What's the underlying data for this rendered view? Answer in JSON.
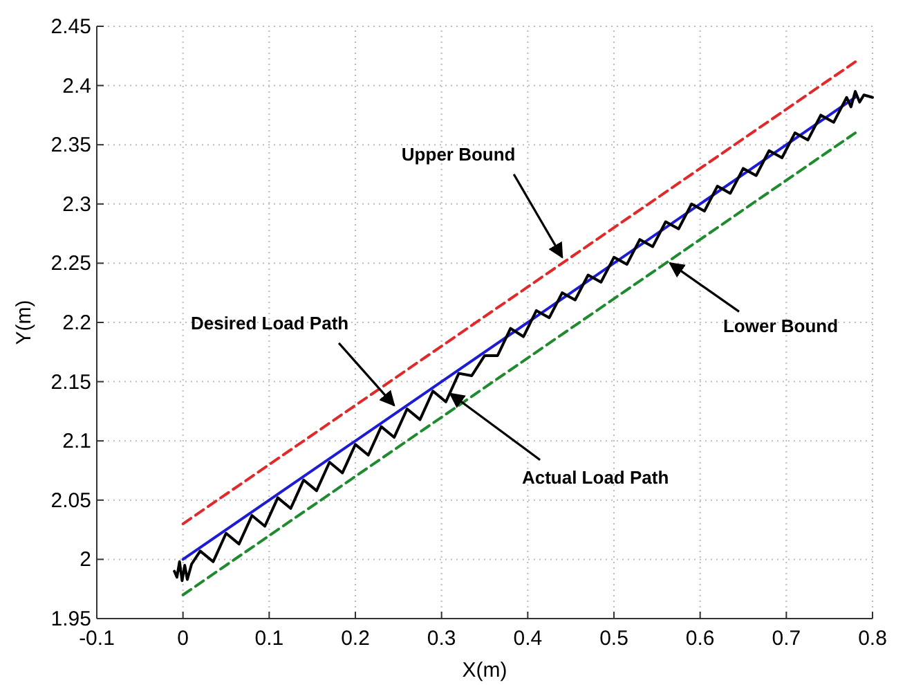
{
  "chart_data": {
    "type": "line",
    "xlabel": "X(m)",
    "ylabel": "Y(m)",
    "xlim": [
      -0.1,
      0.8
    ],
    "ylim": [
      1.95,
      2.45
    ],
    "xticks": [
      -0.1,
      0,
      0.1,
      0.2,
      0.3,
      0.4,
      0.5,
      0.6,
      0.7,
      0.8
    ],
    "yticks": [
      1.95,
      2,
      2.05,
      2.1,
      2.15,
      2.2,
      2.25,
      2.3,
      2.35,
      2.4,
      2.45
    ],
    "grid": true,
    "marker": "none",
    "series": [
      {
        "color": "#e02a2a",
        "line_style": "dashed",
        "x": [
          0,
          0.78
        ],
        "values": [
          2.03,
          2.42
        ]
      },
      {
        "color": "#1f8a2e",
        "line_style": "dashed",
        "x": [
          0,
          0.78
        ],
        "values": [
          1.97,
          2.36
        ]
      },
      {
        "color": "#1c1cd6",
        "line_style": "solid",
        "x": [
          0,
          0.78
        ],
        "values": [
          2.0,
          2.39
        ]
      },
      {
        "color": "#000000",
        "line_style": "solid",
        "x": [
          -0.01,
          -0.007,
          -0.004,
          -0.001,
          0.002,
          0.005,
          0.01,
          0.02,
          0.035,
          0.05,
          0.065,
          0.08,
          0.095,
          0.11,
          0.125,
          0.14,
          0.155,
          0.17,
          0.185,
          0.2,
          0.215,
          0.23,
          0.245,
          0.26,
          0.275,
          0.29,
          0.305,
          0.32,
          0.335,
          0.35,
          0.365,
          0.38,
          0.395,
          0.41,
          0.425,
          0.44,
          0.455,
          0.47,
          0.485,
          0.5,
          0.515,
          0.53,
          0.545,
          0.56,
          0.575,
          0.59,
          0.605,
          0.62,
          0.635,
          0.65,
          0.665,
          0.68,
          0.695,
          0.71,
          0.725,
          0.74,
          0.755,
          0.77,
          0.775,
          0.78,
          0.785,
          0.79,
          0.8
        ],
        "values": [
          1.99,
          1.985,
          1.998,
          1.982,
          1.995,
          1.983,
          1.996,
          2.007,
          1.998,
          2.022,
          2.013,
          2.037,
          2.028,
          2.052,
          2.043,
          2.067,
          2.058,
          2.082,
          2.073,
          2.097,
          2.088,
          2.112,
          2.103,
          2.127,
          2.118,
          2.142,
          2.133,
          2.157,
          2.155,
          2.172,
          2.172,
          2.195,
          2.188,
          2.21,
          2.204,
          2.225,
          2.219,
          2.24,
          2.234,
          2.255,
          2.249,
          2.27,
          2.264,
          2.285,
          2.279,
          2.3,
          2.294,
          2.315,
          2.309,
          2.33,
          2.324,
          2.345,
          2.339,
          2.36,
          2.354,
          2.375,
          2.369,
          2.39,
          2.382,
          2.395,
          2.386,
          2.392,
          2.39
        ]
      }
    ],
    "annotations": [
      {
        "text": "Upper Bound",
        "x": 0.44,
        "y": 2.255
      },
      {
        "text": "Desired Load Path",
        "x": 0.245,
        "y": 2.13
      },
      {
        "text": "Actual Load Path",
        "x": 0.31,
        "y": 2.14
      },
      {
        "text": "Lower Bound",
        "x": 0.565,
        "y": 2.25
      }
    ]
  }
}
